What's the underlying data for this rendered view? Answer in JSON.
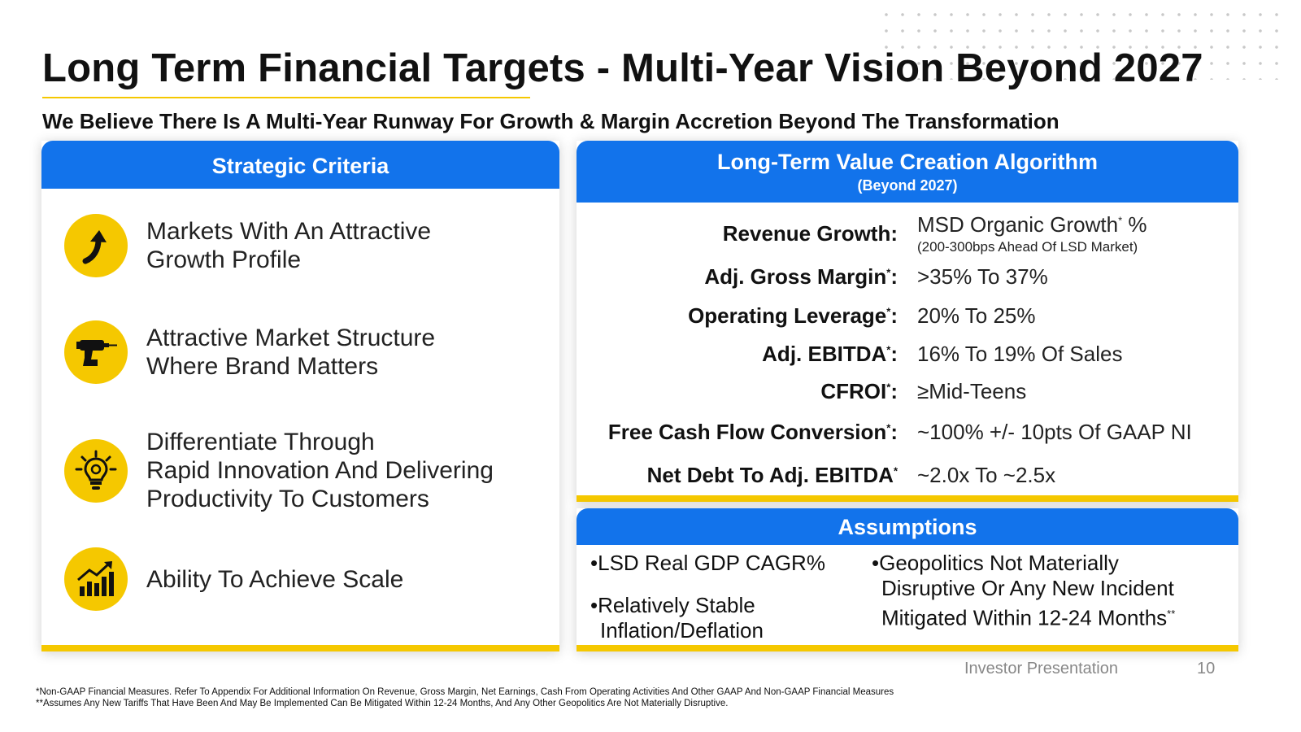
{
  "title": "Long Term Financial Targets - Multi-Year Vision Beyond 2027",
  "subtitle": "We Believe There Is A Multi-Year Runway For Growth & Margin Accretion Beyond The Transformation",
  "colors": {
    "brand_blue": "#1273eb",
    "accent_yellow": "#f5c800"
  },
  "strategic": {
    "heading": "Strategic Criteria",
    "items": [
      {
        "icon": "arrow-up-icon",
        "line1": "Markets With An Attractive",
        "line2": "Growth Profile",
        "line3": ""
      },
      {
        "icon": "drill-icon",
        "line1": "Attractive Market Structure",
        "line2": "Where Brand Matters",
        "line3": ""
      },
      {
        "icon": "lightbulb-icon",
        "line1": "Differentiate Through",
        "line2": "Rapid Innovation And Delivering",
        "line3": "Productivity To Customers"
      },
      {
        "icon": "growth-chart-icon",
        "line1": "Ability To Achieve Scale",
        "line2": "",
        "line3": ""
      }
    ]
  },
  "algorithm": {
    "heading": "Long-Term Value Creation Algorithm",
    "subheading": "(Beyond 2027)",
    "rows": [
      {
        "label": "Revenue Growth:",
        "mark": "",
        "value": "MSD Organic Growth",
        "value_mark": "*",
        "value_tail": " %",
        "note": "(200-300bps Ahead Of LSD Market)"
      },
      {
        "label": "Adj. Gross Margin",
        "mark": "*",
        "colon": ":",
        "value": ">35% To 37%"
      },
      {
        "label": "Operating Leverage",
        "mark": "*",
        "colon": ":",
        "value": "20% To 25%"
      },
      {
        "label": "Adj. EBITDA",
        "mark": "*",
        "colon": ":",
        "value": "16% To 19% Of Sales"
      },
      {
        "label": "CFROI",
        "mark": "*",
        "colon": ":",
        "value": "≥Mid-Teens"
      },
      {
        "label": "Free Cash Flow Conversion",
        "mark": "*",
        "colon": ":",
        "value": "~100% +/- 10pts Of GAAP NI"
      },
      {
        "label": "Net Debt To Adj. EBITDA",
        "mark": "*",
        "colon": "",
        "value": "~2.0x To ~2.5x"
      }
    ]
  },
  "assumptions": {
    "heading": "Assumptions",
    "left": [
      {
        "line1": "•LSD Real GDP CAGR%",
        "line2": ""
      },
      {
        "line1": "•Relatively Stable",
        "line2": "Inflation/Deflation"
      }
    ],
    "right": {
      "line1": "•Geopolitics Not Materially",
      "line2": "Disruptive Or Any New Incident",
      "line3": "Mitigated Within 12-24 Months",
      "mark": "**"
    }
  },
  "page_footer": {
    "label": "Investor Presentation",
    "page_number": "10"
  },
  "footnotes": [
    "*Non-GAAP Financial Measures. Refer To Appendix For Additional Information On Revenue, Gross Margin, Net Earnings, Cash From Operating Activities And Other GAAP And Non-GAAP Financial Measures",
    "**Assumes Any New Tariffs That Have Been And May Be Implemented Can Be Mitigated Within 12-24 Months, And Any Other Geopolitics Are Not Materially Disruptive."
  ]
}
